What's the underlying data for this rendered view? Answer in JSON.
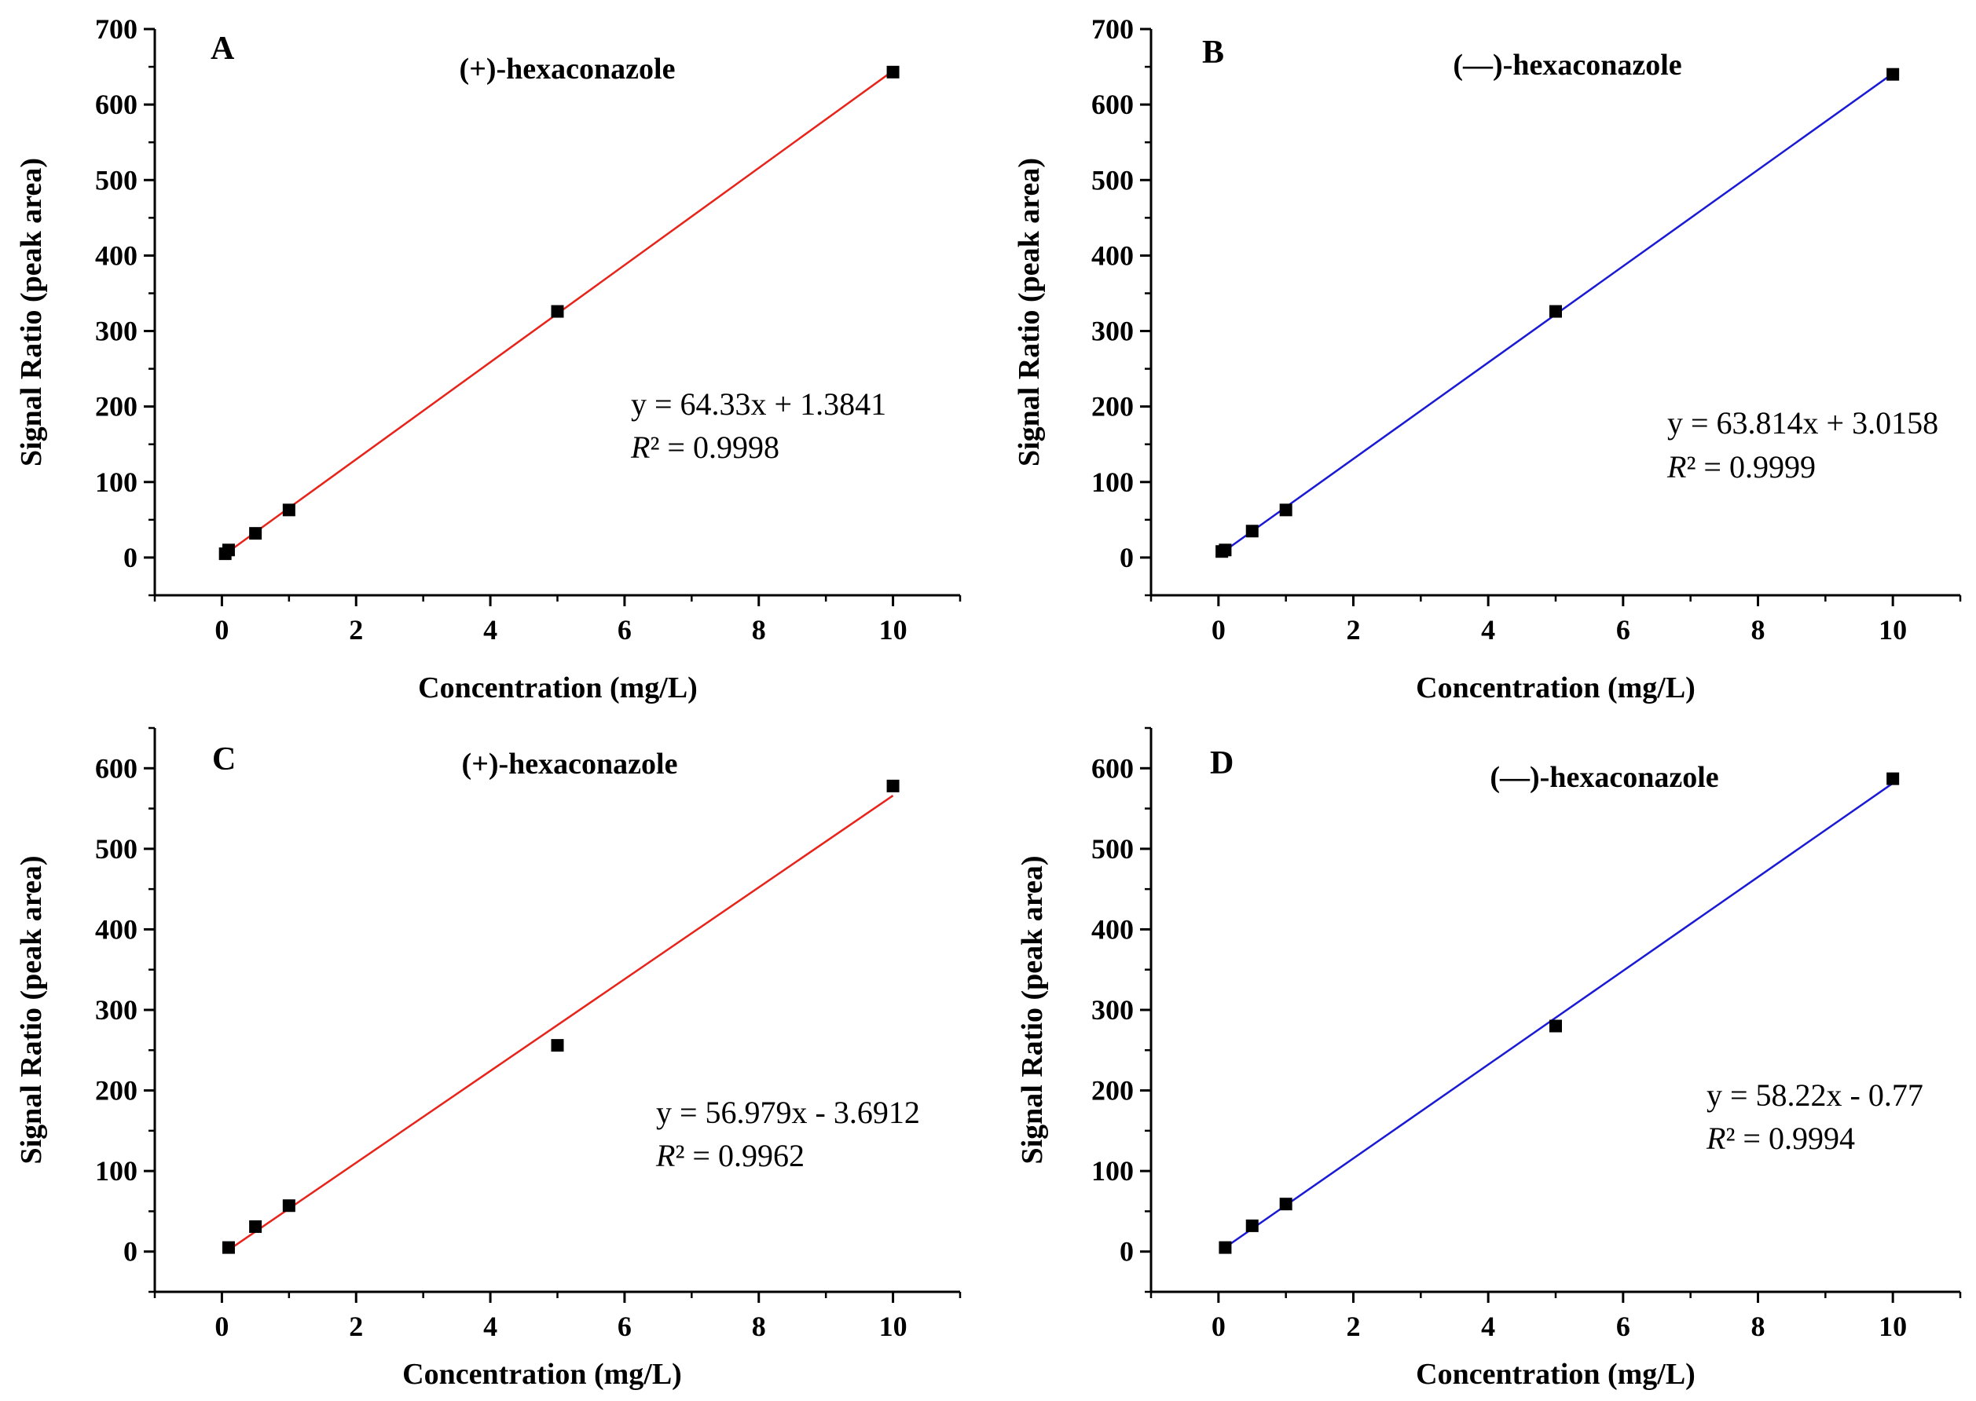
{
  "chart_data": [
    {
      "type": "scatter",
      "panel": "A",
      "title": "(+)-hexaconazole",
      "xlabel": "Concentration (mg/L)",
      "ylabel": "Signal Ratio (peak area)",
      "xlim": [
        -1,
        11
      ],
      "ylim": [
        -50,
        700
      ],
      "xticks": [
        0,
        2,
        4,
        6,
        8,
        10
      ],
      "yticks": [
        0,
        100,
        200,
        300,
        400,
        500,
        600,
        700
      ],
      "fit_color": "#e8231a",
      "fit": {
        "slope": 64.33,
        "intercept": 1.3841
      },
      "equation": "y = 64.33x + 1.3841",
      "r2_label": "R",
      "r2_value": "² = 0.9998",
      "x": [
        0.05,
        0.1,
        0.5,
        1,
        5,
        10
      ],
      "y": [
        5,
        10,
        32,
        63,
        326,
        643
      ]
    },
    {
      "type": "scatter",
      "panel": "B",
      "title": "(—)-hexaconazole",
      "xlabel": "Concentration (mg/L)",
      "ylabel": "Signal Ratio (peak area)",
      "xlim": [
        -1,
        11
      ],
      "ylim": [
        -50,
        700
      ],
      "xticks": [
        0,
        2,
        4,
        6,
        8,
        10
      ],
      "yticks": [
        0,
        100,
        200,
        300,
        400,
        500,
        600,
        700
      ],
      "fit_color": "#1a1ad6",
      "fit": {
        "slope": 63.814,
        "intercept": 3.0158
      },
      "equation": "y = 63.814x + 3.0158",
      "r2_label": "R",
      "r2_value": "² = 0.9999",
      "x": [
        0.05,
        0.1,
        0.5,
        1,
        5,
        10
      ],
      "y": [
        8,
        10,
        35,
        63,
        326,
        640
      ]
    },
    {
      "type": "scatter",
      "panel": "C",
      "title": "(+)-hexaconazole",
      "xlabel": "Concentration (mg/L)",
      "ylabel": "Signal Ratio (peak area)",
      "xlim": [
        -1,
        11
      ],
      "ylim": [
        -50,
        650
      ],
      "xticks": [
        0,
        2,
        4,
        6,
        8,
        10
      ],
      "yticks": [
        0,
        100,
        200,
        300,
        400,
        500,
        600
      ],
      "fit_color": "#e8231a",
      "fit": {
        "slope": 56.979,
        "intercept": -3.6912
      },
      "equation": "y = 56.979x - 3.6912",
      "r2_label": "R",
      "r2_value": "² = 0.9962",
      "x": [
        0.1,
        0.5,
        1,
        5,
        10
      ],
      "y": [
        5,
        31,
        57,
        256,
        578
      ]
    },
    {
      "type": "scatter",
      "panel": "D",
      "title": "(—)-hexaconazole",
      "xlabel": "Concentration (mg/L)",
      "ylabel": "Signal Ratio (peak area)",
      "xlim": [
        -1,
        11
      ],
      "ylim": [
        -50,
        650
      ],
      "xticks": [
        0,
        2,
        4,
        6,
        8,
        10
      ],
      "yticks": [
        0,
        100,
        200,
        300,
        400,
        500,
        600
      ],
      "fit_color": "#1a1ad6",
      "fit": {
        "slope": 58.22,
        "intercept": -0.77
      },
      "equation": "y = 58.22x - 0.77",
      "r2_label": "R",
      "r2_value": "² = 0.9994",
      "x": [
        0.1,
        0.5,
        1,
        5,
        10
      ],
      "y": [
        5,
        32,
        59,
        280,
        587
      ]
    }
  ]
}
